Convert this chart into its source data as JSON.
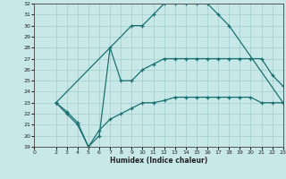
{
  "xlabel": "Humidex (Indice chaleur)",
  "xlim": [
    0,
    23
  ],
  "ylim": [
    19,
    32
  ],
  "xticks": [
    0,
    2,
    3,
    4,
    5,
    6,
    7,
    8,
    9,
    10,
    11,
    12,
    13,
    14,
    15,
    16,
    17,
    18,
    19,
    20,
    21,
    22,
    23
  ],
  "yticks": [
    19,
    20,
    21,
    22,
    23,
    24,
    25,
    26,
    27,
    28,
    29,
    30,
    31,
    32
  ],
  "bg_color": "#c8e8e8",
  "grid_color": "#a0cccc",
  "line_color": "#1a7070",
  "curve1_x": [
    2,
    9,
    10,
    11,
    12,
    13,
    14,
    15,
    16,
    17,
    18,
    23
  ],
  "curve1_y": [
    23,
    30,
    30,
    31,
    32,
    32,
    32,
    32,
    32,
    31,
    30,
    23
  ],
  "curve2_x": [
    2,
    3,
    4,
    5,
    6,
    7,
    8,
    9,
    10,
    11,
    12,
    13,
    14,
    15,
    16,
    17,
    18,
    19,
    20,
    21,
    22,
    23
  ],
  "curve2_y": [
    23,
    22,
    21,
    19,
    20,
    28,
    25,
    25,
    26,
    26.5,
    27,
    27,
    27,
    27,
    27,
    27,
    27,
    27,
    27,
    27,
    25.5,
    24.5
  ],
  "curve3_x": [
    2,
    3,
    4,
    5,
    6,
    7,
    8,
    9,
    10,
    11,
    12,
    13,
    14,
    15,
    16,
    17,
    18,
    19,
    20,
    21,
    22,
    23
  ],
  "curve3_y": [
    23,
    22.2,
    21.2,
    19,
    20.5,
    21.5,
    22,
    22.5,
    23,
    23,
    23.2,
    23.5,
    23.5,
    23.5,
    23.5,
    23.5,
    23.5,
    23.5,
    23.5,
    23,
    23,
    23
  ]
}
